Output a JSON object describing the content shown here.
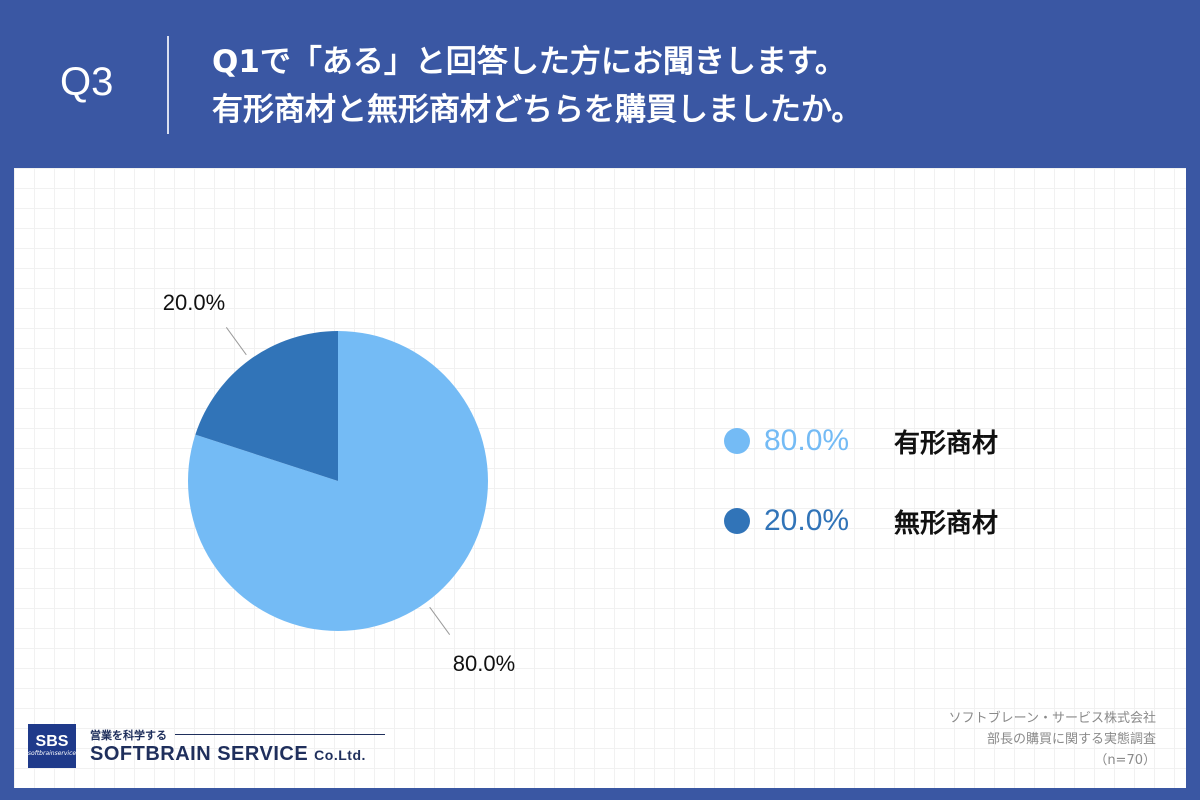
{
  "header": {
    "question_number": "Q3",
    "question_line1": "Q1で「ある」と回答した方にお聞きします。",
    "question_line2": "有形商材と無形商材どちらを購買しましたか。"
  },
  "chart_data": {
    "type": "pie",
    "unit": "%",
    "slices": [
      {
        "name": "有形商材",
        "value": 80.0,
        "display": "80.0%",
        "color": "#74bbf5"
      },
      {
        "name": "無形商材",
        "value": 20.0,
        "display": "20.0%",
        "color": "#3174b8"
      }
    ],
    "legend_placement": "right"
  },
  "footer": {
    "source_line1": "ソフトブレーン・サービス株式会社",
    "source_line2": "部長の購買に関する実態調査",
    "source_line3": "（n=70）"
  },
  "logo": {
    "box_text": "SBS",
    "box_subtext": "softbrainservice",
    "tagline": "営業を科学する",
    "name": "SOFTBRAIN SERVICE",
    "suffix": "Co.Ltd."
  }
}
